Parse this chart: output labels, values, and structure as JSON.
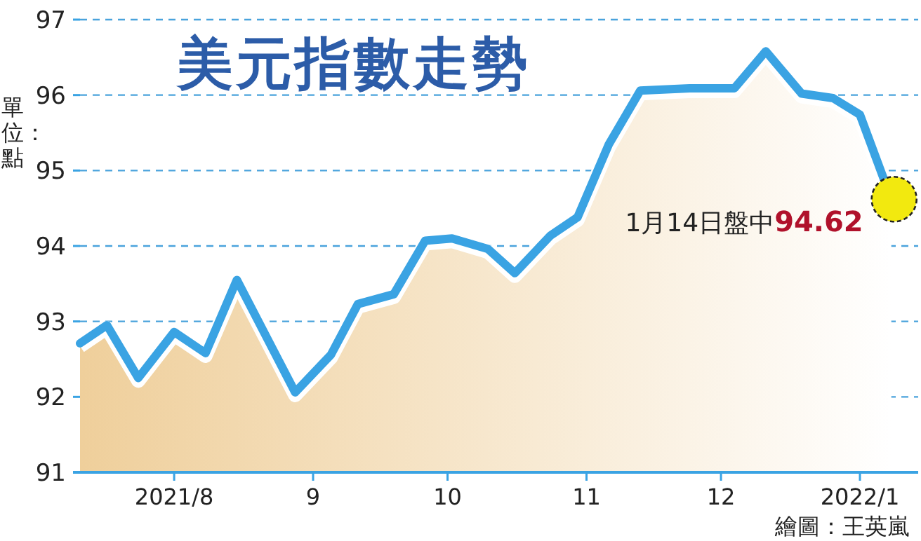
{
  "chart_data": {
    "type": "area",
    "title": "美元指數走勢",
    "ylabel": "單位：點",
    "x": [
      "2021-07-11",
      "2021-07-17",
      "2021-07-24",
      "2021-08-01",
      "2021-08-08",
      "2021-08-15",
      "2021-08-28",
      "2021-09-05",
      "2021-09-11",
      "2021-09-19",
      "2021-09-26",
      "2021-10-02",
      "2021-10-10",
      "2021-10-16",
      "2021-10-24",
      "2021-10-30",
      "2021-11-06",
      "2021-11-13",
      "2021-11-24",
      "2021-12-04",
      "2021-12-11",
      "2021-12-19",
      "2021-12-26",
      "2022-01-01",
      "2022-01-08"
    ],
    "series": [
      {
        "color": "#3aa3e3",
        "values": [
          92.71,
          92.95,
          92.25,
          92.86,
          92.58,
          93.55,
          92.06,
          92.56,
          93.23,
          93.36,
          94.07,
          94.1,
          93.96,
          93.64,
          94.14,
          94.38,
          95.35,
          96.06,
          96.09,
          96.09,
          96.58,
          96.02,
          95.96,
          95.74,
          94.62
        ]
      }
    ],
    "xlim": [
      "2021-07-11",
      "2022-01-14"
    ],
    "xticks": [
      {
        "value": "2021-08-01",
        "label": "2021/8"
      },
      {
        "value": "2021-09-01",
        "label": "9"
      },
      {
        "value": "2021-10-01",
        "label": "10"
      },
      {
        "value": "2021-11-01",
        "label": "11"
      },
      {
        "value": "2021-12-01",
        "label": "12"
      },
      {
        "value": "2022-01-01",
        "label": "2022/1"
      }
    ],
    "ylim": [
      91,
      97
    ],
    "yticks": [
      91,
      92,
      93,
      94,
      95,
      96,
      97
    ],
    "grid": "y",
    "marker": "none",
    "line_style": "solid",
    "annotations": [
      {
        "text": "1月14日盤中**94.62**",
        "x": "2022-01-08",
        "y": 94.62
      },
      "繪圖：王英嵐"
    ]
  }
}
